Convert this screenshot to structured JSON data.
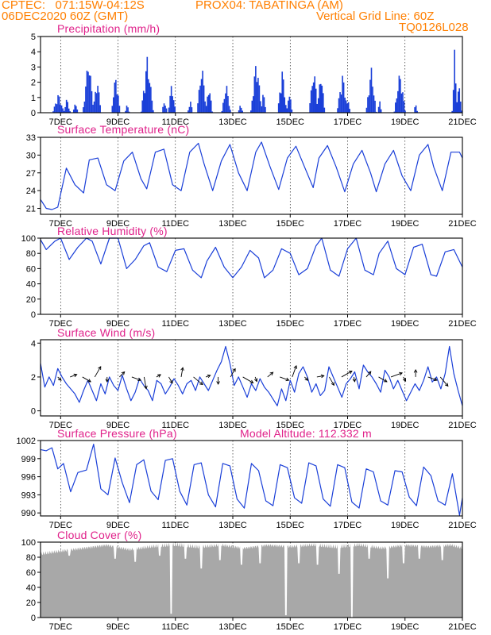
{
  "header": {
    "line1_left": "CPTEC:   071:15W-04:12S",
    "line1_right": "PROX04: TABATINGA (AM)",
    "line2_left": "06DEC2020 60Z (GMT)",
    "line2_right": "Vertical Grid Line: 60Z",
    "line3_right": "TQ0126L028"
  },
  "colors": {
    "header": "#ff7f00",
    "title": "#e0218a",
    "series": "#1a3fd8",
    "cloud": "#a8a8a8",
    "axis": "#000000"
  },
  "chart_data": [
    {
      "type": "bar",
      "title": "Precipitation (mm/h)",
      "y_ticks": [
        "0",
        "1",
        "2",
        "3",
        "4",
        "5"
      ],
      "ylim": [
        0,
        5
      ],
      "x_ticks": [
        "7DEC",
        "9DEC",
        "11DEC",
        "13DEC",
        "15DEC",
        "17DEC",
        "19DEC",
        "21DEC"
      ],
      "x_days": [
        7,
        9,
        11,
        13,
        15,
        17,
        19,
        21
      ],
      "xlim": [
        6.3,
        21.0
      ],
      "bursts": [
        {
          "day": 6.9,
          "peak": 1.3,
          "width": 0.2
        },
        {
          "day": 7.2,
          "peak": 1.0,
          "width": 0.12
        },
        {
          "day": 7.5,
          "peak": 0.7,
          "width": 0.1
        },
        {
          "day": 7.95,
          "peak": 3.8,
          "width": 0.2
        },
        {
          "day": 8.25,
          "peak": 2.4,
          "width": 0.15
        },
        {
          "day": 8.9,
          "peak": 2.6,
          "width": 0.16
        },
        {
          "day": 9.3,
          "peak": 0.6,
          "width": 0.08
        },
        {
          "day": 10.0,
          "peak": 3.8,
          "width": 0.22
        },
        {
          "day": 10.6,
          "peak": 0.9,
          "width": 0.1
        },
        {
          "day": 10.85,
          "peak": 2.0,
          "width": 0.14
        },
        {
          "day": 11.5,
          "peak": 0.8,
          "width": 0.1
        },
        {
          "day": 11.9,
          "peak": 3.3,
          "width": 0.18
        },
        {
          "day": 12.15,
          "peak": 2.0,
          "width": 0.12
        },
        {
          "day": 12.75,
          "peak": 2.0,
          "width": 0.16
        },
        {
          "day": 13.25,
          "peak": 0.7,
          "width": 0.08
        },
        {
          "day": 13.8,
          "peak": 3.7,
          "width": 0.2
        },
        {
          "day": 14.05,
          "peak": 1.5,
          "width": 0.1
        },
        {
          "day": 14.7,
          "peak": 3.0,
          "width": 0.16
        },
        {
          "day": 14.95,
          "peak": 1.6,
          "width": 0.1
        },
        {
          "day": 15.8,
          "peak": 3.0,
          "width": 0.18
        },
        {
          "day": 16.05,
          "peak": 2.9,
          "width": 0.14
        },
        {
          "day": 16.8,
          "peak": 2.6,
          "width": 0.2
        },
        {
          "day": 17.0,
          "peak": 1.0,
          "width": 0.08
        },
        {
          "day": 17.8,
          "peak": 3.1,
          "width": 0.18
        },
        {
          "day": 18.1,
          "peak": 0.8,
          "width": 0.08
        },
        {
          "day": 18.8,
          "peak": 2.8,
          "width": 0.2
        },
        {
          "day": 19.35,
          "peak": 0.6,
          "width": 0.08
        },
        {
          "day": 20.7,
          "peak": 4.9,
          "width": 0.08
        },
        {
          "day": 20.85,
          "peak": 2.0,
          "width": 0.12
        }
      ]
    },
    {
      "type": "line",
      "title": "Surface Temperature (nC)",
      "y_ticks": [
        "21",
        "24",
        "27",
        "30",
        "33"
      ],
      "ylim": [
        20,
        33
      ],
      "x_ticks": [
        "7DEC",
        "9DEC",
        "11DEC",
        "13DEC",
        "15DEC",
        "17DEC",
        "19DEC",
        "21DEC"
      ],
      "x": [
        6.3,
        6.5,
        6.7,
        6.9,
        7.2,
        7.5,
        7.8,
        8.0,
        8.3,
        8.6,
        8.9,
        9.2,
        9.5,
        9.8,
        10.0,
        10.3,
        10.6,
        10.9,
        11.2,
        11.5,
        11.8,
        12.0,
        12.3,
        12.6,
        12.9,
        13.2,
        13.5,
        13.8,
        14.0,
        14.3,
        14.6,
        14.9,
        15.2,
        15.5,
        15.8,
        16.0,
        16.3,
        16.6,
        16.9,
        17.2,
        17.5,
        17.8,
        18.0,
        18.3,
        18.6,
        18.9,
        19.2,
        19.5,
        19.8,
        20.0,
        20.3,
        20.6,
        20.9,
        21.0
      ],
      "y": [
        22.5,
        21.0,
        20.8,
        21.2,
        27.8,
        25.0,
        23.6,
        29.2,
        29.5,
        25.0,
        24.0,
        29.0,
        30.5,
        26.0,
        24.3,
        30.5,
        31.0,
        25.0,
        24.0,
        30.5,
        32.0,
        28.5,
        24.0,
        29.0,
        31.8,
        27.0,
        24.0,
        30.5,
        32.2,
        28.0,
        24.2,
        29.5,
        31.5,
        28.0,
        24.5,
        29.5,
        31.6,
        28.0,
        23.8,
        28.5,
        30.8,
        27.0,
        23.8,
        28.5,
        30.8,
        26.5,
        24.0,
        30.0,
        31.8,
        28.0,
        24.0,
        30.5,
        30.5,
        29.5
      ]
    },
    {
      "type": "line",
      "title": "Relative Humidity (%)",
      "y_ticks": [
        "0",
        "20",
        "40",
        "60",
        "80",
        "100"
      ],
      "ylim": [
        0,
        100
      ],
      "x_ticks": [
        "7DEC",
        "9DEC",
        "11DEC",
        "13DEC",
        "15DEC",
        "17DEC",
        "19DEC",
        "21DEC"
      ],
      "x": [
        6.3,
        6.5,
        6.8,
        7.0,
        7.3,
        7.6,
        7.9,
        8.1,
        8.4,
        8.7,
        9.0,
        9.3,
        9.6,
        9.9,
        10.1,
        10.4,
        10.7,
        11.0,
        11.3,
        11.6,
        11.9,
        12.1,
        12.4,
        12.7,
        13.0,
        13.3,
        13.6,
        13.9,
        14.1,
        14.4,
        14.7,
        15.0,
        15.3,
        15.6,
        15.9,
        16.1,
        16.4,
        16.7,
        17.0,
        17.3,
        17.6,
        17.9,
        18.1,
        18.4,
        18.7,
        19.0,
        19.3,
        19.6,
        19.9,
        20.1,
        20.4,
        20.7,
        21.0
      ],
      "y": [
        98,
        85,
        96,
        100,
        72,
        88,
        100,
        96,
        66,
        100,
        100,
        60,
        72,
        90,
        94,
        62,
        56,
        84,
        86,
        58,
        48,
        70,
        88,
        62,
        48,
        62,
        84,
        74,
        48,
        58,
        86,
        80,
        52,
        60,
        90,
        100,
        58,
        50,
        86,
        100,
        58,
        52,
        80,
        96,
        60,
        52,
        88,
        92,
        52,
        50,
        82,
        85,
        62
      ]
    },
    {
      "type": "line",
      "title": "Surface Wind (m/s)",
      "y_ticks": [
        "0",
        "2",
        "4"
      ],
      "ylim": [
        -0.3,
        4.2
      ],
      "x_ticks": [
        "7DEC",
        "9DEC",
        "11DEC",
        "13DEC",
        "15DEC",
        "17DEC",
        "19DEC",
        "21DEC"
      ],
      "x": [
        6.3,
        6.45,
        6.6,
        6.75,
        6.9,
        7.05,
        7.2,
        7.35,
        7.5,
        7.65,
        7.8,
        7.95,
        8.1,
        8.25,
        8.4,
        8.55,
        8.7,
        8.85,
        9.0,
        9.15,
        9.3,
        9.45,
        9.6,
        9.75,
        9.9,
        10.05,
        10.2,
        10.35,
        10.5,
        10.65,
        10.8,
        10.95,
        11.1,
        11.25,
        11.4,
        11.55,
        11.7,
        11.85,
        12.0,
        12.15,
        12.3,
        12.45,
        12.6,
        12.75,
        12.9,
        13.05,
        13.2,
        13.35,
        13.5,
        13.65,
        13.8,
        13.95,
        14.1,
        14.25,
        14.4,
        14.55,
        14.7,
        14.85,
        15.0,
        15.15,
        15.3,
        15.45,
        15.6,
        15.75,
        15.9,
        16.05,
        16.2,
        16.35,
        16.5,
        16.65,
        16.8,
        16.95,
        17.1,
        17.25,
        17.4,
        17.55,
        17.7,
        17.85,
        18.0,
        18.15,
        18.3,
        18.45,
        18.6,
        18.75,
        18.9,
        19.05,
        19.2,
        19.35,
        19.5,
        19.65,
        19.8,
        19.95,
        20.1,
        20.25,
        20.4,
        20.55,
        20.7,
        20.85,
        21.0
      ],
      "y": [
        2.8,
        1.4,
        2.0,
        1.5,
        2.5,
        2.0,
        1.6,
        1.3,
        1.0,
        0.5,
        1.2,
        1.8,
        1.2,
        0.6,
        1.6,
        1.0,
        2.0,
        1.5,
        1.2,
        2.1,
        1.3,
        0.6,
        1.1,
        1.9,
        1.5,
        1.2,
        0.6,
        1.8,
        1.6,
        1.0,
        1.4,
        1.9,
        1.5,
        1.0,
        1.6,
        1.8,
        1.2,
        2.0,
        1.6,
        1.2,
        1.8,
        2.4,
        2.9,
        3.8,
        2.8,
        1.5,
        2.0,
        1.4,
        0.8,
        1.6,
        1.2,
        1.9,
        1.4,
        1.1,
        0.7,
        0.3,
        1.3,
        0.6,
        1.8,
        1.1,
        2.2,
        2.6,
        2.0,
        1.1,
        1.6,
        0.9,
        1.2,
        2.6,
        2.0,
        1.4,
        0.8,
        1.6,
        1.9,
        2.3,
        1.3,
        2.7,
        2.3,
        2.0,
        1.6,
        1.1,
        2.4,
        2.0,
        1.3,
        1.8,
        1.2,
        0.6,
        1.1,
        1.6,
        1.2,
        1.8,
        2.6,
        1.7,
        2.0,
        1.3,
        2.2,
        3.8,
        2.2,
        1.2,
        0.3
      ]
    },
    {
      "type": "line",
      "title": "Surface Pressure (hPa)",
      "subtitle": "Model Altitude: 112.332 m",
      "y_ticks": [
        "990",
        "993",
        "996",
        "999",
        "1002"
      ],
      "ylim": [
        989.5,
        1002
      ],
      "x_ticks": [
        "7DEC",
        "9DEC",
        "11DEC",
        "13DEC",
        "15DEC",
        "17DEC",
        "19DEC",
        "21DEC"
      ],
      "x": [
        6.3,
        6.5,
        6.7,
        6.9,
        7.1,
        7.35,
        7.6,
        7.9,
        8.15,
        8.4,
        8.65,
        8.9,
        9.15,
        9.4,
        9.65,
        9.9,
        10.15,
        10.4,
        10.65,
        10.9,
        11.15,
        11.4,
        11.65,
        11.9,
        12.15,
        12.4,
        12.65,
        12.9,
        13.15,
        13.4,
        13.65,
        13.9,
        14.15,
        14.4,
        14.65,
        14.9,
        15.15,
        15.4,
        15.65,
        15.9,
        16.15,
        16.4,
        16.65,
        16.9,
        17.15,
        17.4,
        17.65,
        17.9,
        18.15,
        18.4,
        18.65,
        18.9,
        19.15,
        19.4,
        19.65,
        19.9,
        20.15,
        20.4,
        20.65,
        20.9,
        21.0
      ],
      "y": [
        1000.5,
        1000.3,
        1000.8,
        997.3,
        998.2,
        993.5,
        996.7,
        997.1,
        1001.4,
        994.0,
        993.0,
        999.1,
        995.0,
        991.7,
        998.0,
        998.8,
        993.6,
        992.2,
        998.7,
        999.0,
        993.6,
        991.3,
        998.0,
        998.3,
        993.0,
        991.0,
        998.2,
        997.8,
        992.3,
        990.8,
        998.2,
        997.0,
        992.0,
        991.2,
        998.0,
        997.5,
        992.5,
        991.6,
        998.3,
        997.8,
        992.3,
        991.1,
        998.0,
        997.5,
        991.8,
        990.8,
        997.3,
        996.8,
        992.0,
        991.3,
        997.0,
        996.8,
        992.6,
        991.2,
        997.6,
        996.2,
        992.0,
        991.3,
        996.5,
        989.6,
        992.5
      ]
    },
    {
      "type": "area",
      "title": "Cloud Cover (%)",
      "y_ticks": [
        "0",
        "20",
        "40",
        "60",
        "80",
        "100"
      ],
      "ylim": [
        0,
        100
      ],
      "x_ticks": [
        "7DEC",
        "9DEC",
        "11DEC",
        "13DEC",
        "15DEC",
        "17DEC",
        "19DEC",
        "21DEC"
      ],
      "baseline": [
        {
          "x": 6.3,
          "y": 88
        },
        {
          "x": 7.0,
          "y": 92
        },
        {
          "x": 7.8,
          "y": 96
        },
        {
          "x": 8.6,
          "y": 100
        },
        {
          "x": 9.4,
          "y": 94
        },
        {
          "x": 10.2,
          "y": 98
        },
        {
          "x": 11.0,
          "y": 100
        },
        {
          "x": 11.8,
          "y": 97
        },
        {
          "x": 12.6,
          "y": 100
        },
        {
          "x": 13.4,
          "y": 96
        },
        {
          "x": 14.2,
          "y": 100
        },
        {
          "x": 15.0,
          "y": 98
        },
        {
          "x": 15.8,
          "y": 100
        },
        {
          "x": 16.6,
          "y": 97
        },
        {
          "x": 17.4,
          "y": 100
        },
        {
          "x": 18.2,
          "y": 96
        },
        {
          "x": 19.0,
          "y": 100
        },
        {
          "x": 19.8,
          "y": 98
        },
        {
          "x": 20.6,
          "y": 100
        },
        {
          "x": 21.0,
          "y": 96
        }
      ],
      "dips": [
        {
          "x": 7.3,
          "y": 82
        },
        {
          "x": 8.9,
          "y": 78
        },
        {
          "x": 9.6,
          "y": 74
        },
        {
          "x": 10.45,
          "y": 82
        },
        {
          "x": 10.85,
          "y": 5
        },
        {
          "x": 11.35,
          "y": 78
        },
        {
          "x": 11.9,
          "y": 65
        },
        {
          "x": 12.55,
          "y": 76
        },
        {
          "x": 13.3,
          "y": 70
        },
        {
          "x": 13.95,
          "y": 72
        },
        {
          "x": 14.85,
          "y": 3
        },
        {
          "x": 15.3,
          "y": 72
        },
        {
          "x": 15.95,
          "y": 70
        },
        {
          "x": 16.7,
          "y": 58
        },
        {
          "x": 17.15,
          "y": 0
        },
        {
          "x": 17.75,
          "y": 78
        },
        {
          "x": 18.4,
          "y": 52
        },
        {
          "x": 18.95,
          "y": 72
        },
        {
          "x": 19.5,
          "y": 78
        },
        {
          "x": 20.3,
          "y": 76
        }
      ]
    }
  ]
}
